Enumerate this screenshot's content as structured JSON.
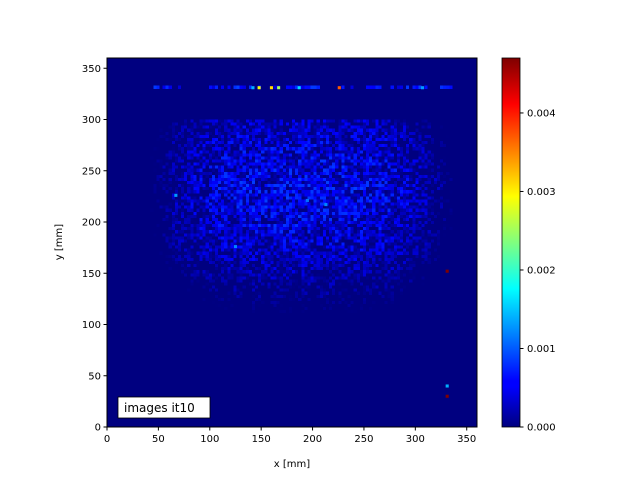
{
  "chart_data": {
    "type": "heatmap",
    "xlabel": "x [mm]",
    "ylabel": "y [mm]",
    "xlim": [
      0,
      360
    ],
    "ylim": [
      0,
      360
    ],
    "xticks": [
      "0",
      "50",
      "100",
      "150",
      "200",
      "250",
      "300",
      "350"
    ],
    "yticks": [
      "0",
      "50",
      "100",
      "150",
      "200",
      "250",
      "300",
      "350"
    ],
    "bin_size": 3,
    "colormap": "jet",
    "colorbar": {
      "range": [
        0,
        0.0047
      ],
      "ticks": [
        "0.000",
        "0.001",
        "0.002",
        "0.003",
        "0.004"
      ]
    },
    "annotation": "images it10",
    "hotspots": [
      {
        "x": 142,
        "y": 331,
        "value": 0.0014
      },
      {
        "x": 148,
        "y": 331,
        "value": 0.0029
      },
      {
        "x": 160,
        "y": 331,
        "value": 0.0031
      },
      {
        "x": 167,
        "y": 331,
        "value": 0.0025
      },
      {
        "x": 187,
        "y": 331,
        "value": 0.0016
      },
      {
        "x": 226,
        "y": 331,
        "value": 0.0037
      },
      {
        "x": 307,
        "y": 331,
        "value": 0.0013
      },
      {
        "x": 331,
        "y": 152,
        "value": 0.0047
      },
      {
        "x": 331,
        "y": 40,
        "value": 0.0014
      },
      {
        "x": 331,
        "y": 30,
        "value": 0.0047
      },
      {
        "x": 67,
        "y": 226,
        "value": 0.0013
      },
      {
        "x": 125,
        "y": 176,
        "value": 0.0012
      },
      {
        "x": 195,
        "y": 221,
        "value": 0.0011
      },
      {
        "x": 213,
        "y": 217,
        "value": 0.0012
      }
    ]
  }
}
